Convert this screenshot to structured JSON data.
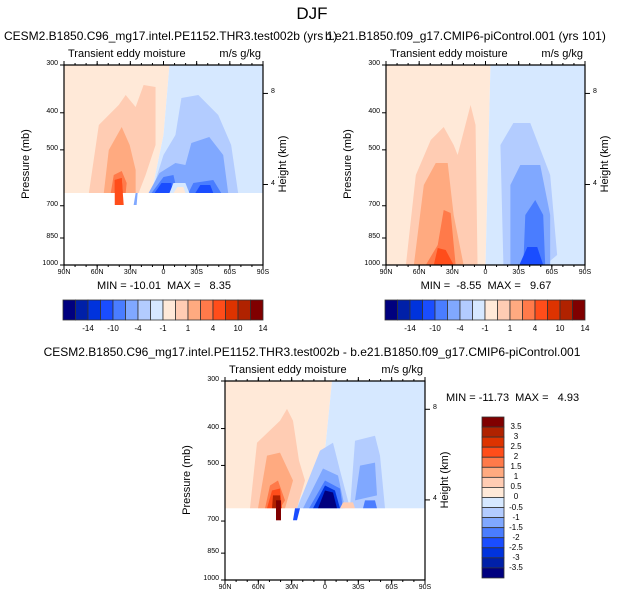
{
  "figure_title": "DJF",
  "chart_data": [
    {
      "type": "heatmap",
      "subtype": "filled-contour",
      "title": "CESM2.B1850.C96_mg17.intel.PE1152.THR3.test002b (yrs 1)",
      "left_string": "Transient eddy moisture",
      "right_string": "m/s g/kg",
      "ylabel": "Pressure (mb)",
      "ylabel_right": "Height (km)",
      "x_ticks": [
        "90N",
        "60N",
        "30N",
        "0",
        "30S",
        "60S",
        "90S"
      ],
      "y_ticks": [
        "300",
        "400",
        "500",
        "700",
        "850",
        "1000"
      ],
      "y_right_ticks": [
        "8",
        "4"
      ],
      "y_scale": "log",
      "ylim": [
        1000,
        300
      ],
      "stats": "MIN = -10.01  MAX =   8.35",
      "colorbar_labels": [
        "-14",
        "-10",
        "-4",
        "-1",
        "1",
        "4",
        "10",
        "14"
      ],
      "colorbar_levels": [
        -14,
        -12,
        -10,
        -8,
        -4,
        -2,
        -1,
        0,
        1,
        2,
        4,
        8,
        10,
        12,
        14
      ],
      "min": -10.01,
      "max": 8.35
    },
    {
      "type": "heatmap",
      "subtype": "filled-contour",
      "title": "b.e21.B1850.f09_g17.CMIP6-piControl.001 (yrs 101)",
      "left_string": "Transient eddy moisture",
      "right_string": "m/s g/kg",
      "ylabel": "Pressure (mb)",
      "ylabel_right": "Height (km)",
      "x_ticks": [
        "90N",
        "60N",
        "30N",
        "0",
        "30S",
        "60S",
        "90S"
      ],
      "y_ticks": [
        "300",
        "400",
        "500",
        "700",
        "850",
        "1000"
      ],
      "y_right_ticks": [
        "8",
        "4"
      ],
      "y_scale": "log",
      "ylim": [
        1000,
        300
      ],
      "stats": "MIN =  -8.55  MAX =   9.67",
      "colorbar_labels": [
        "-14",
        "-10",
        "-4",
        "-1",
        "1",
        "4",
        "10",
        "14"
      ],
      "colorbar_levels": [
        -14,
        -12,
        -10,
        -8,
        -4,
        -2,
        -1,
        0,
        1,
        2,
        4,
        8,
        10,
        12,
        14
      ],
      "min": -8.55,
      "max": 9.67
    },
    {
      "type": "heatmap",
      "subtype": "filled-contour",
      "title": "CESM2.B1850.C96_mg17.intel.PE1152.THR3.test002b - b.e21.B1850.f09_g17.CMIP6-piControl.001",
      "left_string": "Transient eddy moisture",
      "right_string": "m/s g/kg",
      "ylabel": "Pressure (mb)",
      "ylabel_right": "Height (km)",
      "x_ticks": [
        "90N",
        "60N",
        "30N",
        "0",
        "30S",
        "60S",
        "90S"
      ],
      "y_ticks": [
        "300",
        "400",
        "500",
        "700",
        "850",
        "1000"
      ],
      "y_right_ticks": [
        "8",
        "4"
      ],
      "y_scale": "log",
      "ylim": [
        1000,
        300
      ],
      "stats": "MIN = -11.73  MAX =   4.93",
      "colorbar_labels": [
        "3.5",
        "3",
        "2.5",
        "2",
        "1.5",
        "1",
        "0.5",
        "0",
        "-0.5",
        "-1",
        "-1.5",
        "-2",
        "-2.5",
        "-3",
        "-3.5"
      ],
      "colorbar_levels": [
        3.5,
        3,
        2.5,
        2,
        1.5,
        1,
        0.5,
        0,
        -0.5,
        -1,
        -1.5,
        -2,
        -2.5,
        -3,
        -3.5
      ],
      "min": -11.73,
      "max": 4.93
    }
  ],
  "palette": [
    "#00007f",
    "#0020a8",
    "#0033dd",
    "#1a4dff",
    "#4a7dff",
    "#80a8ff",
    "#b3ccff",
    "#d6e8ff",
    "#ffe9d8",
    "#ffccb3",
    "#ffaa80",
    "#ff7a4a",
    "#ff4d1a",
    "#dd3300",
    "#b02200",
    "#800000"
  ]
}
